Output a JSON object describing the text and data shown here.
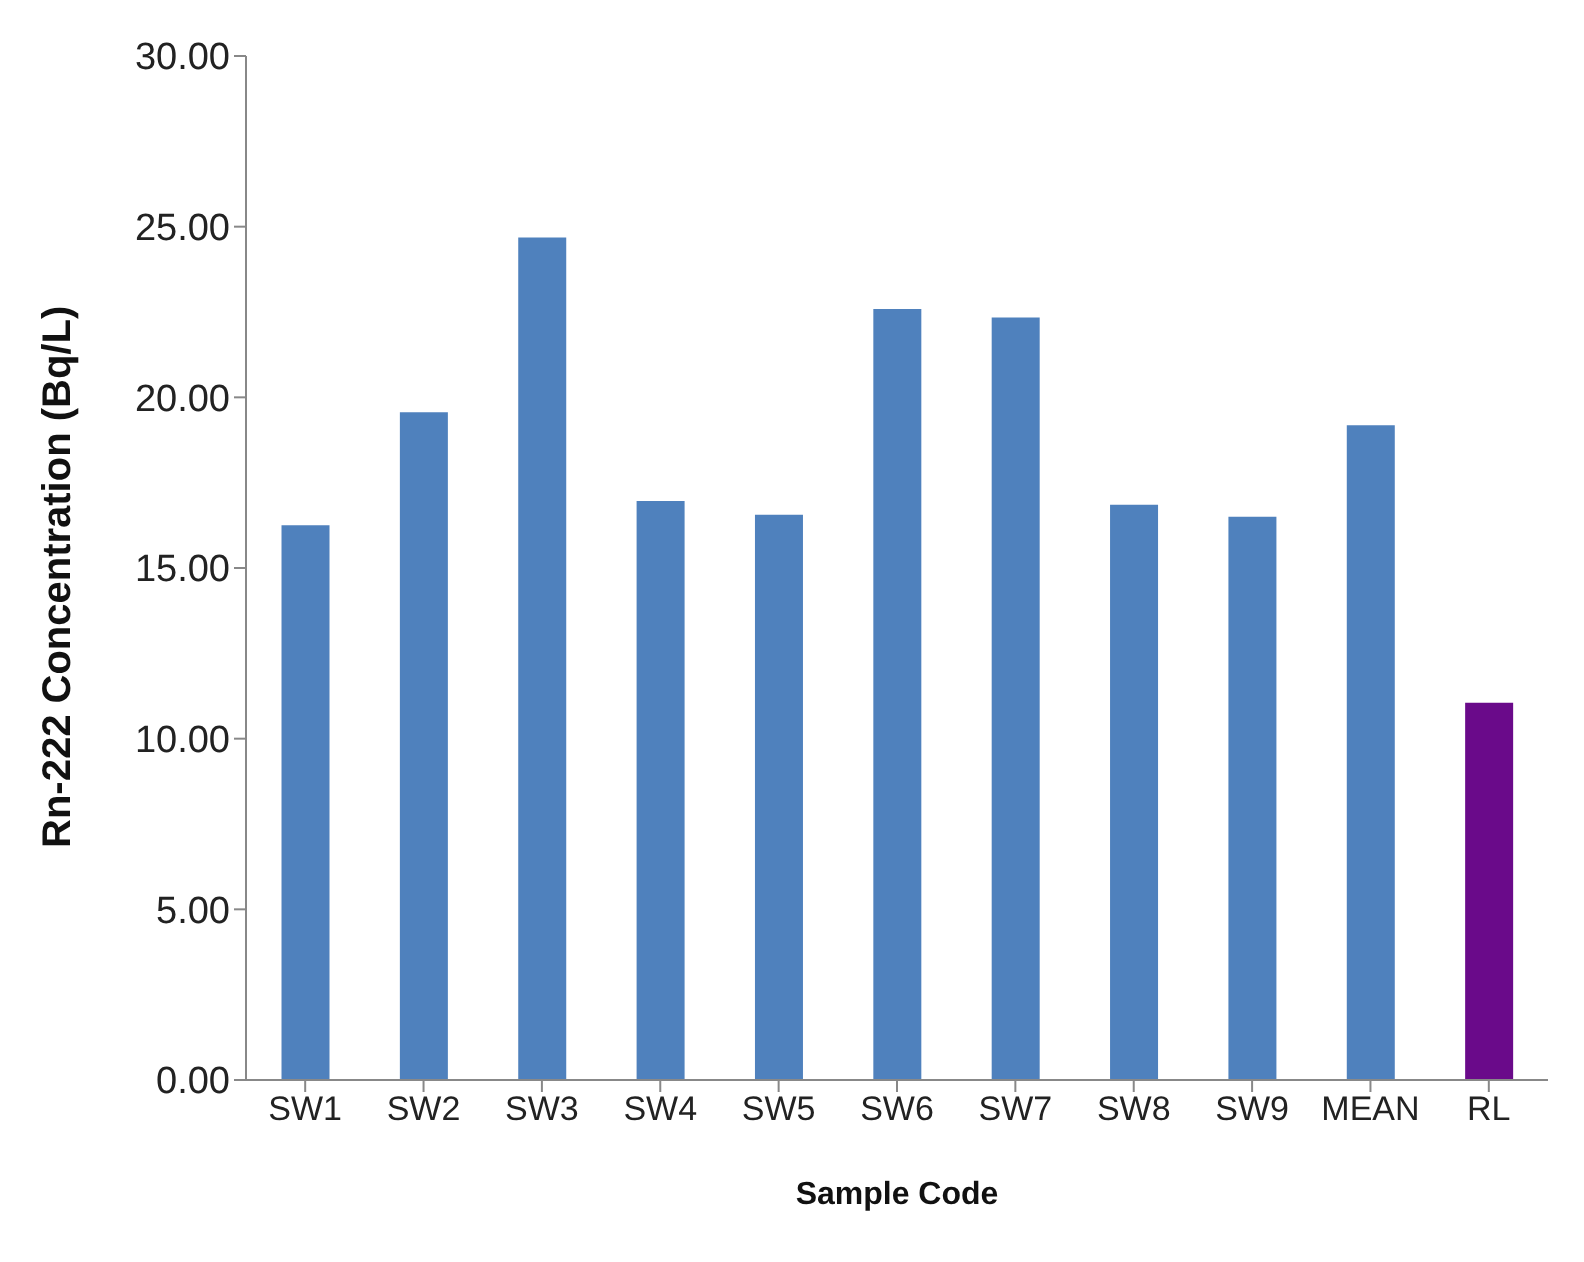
{
  "chart_data": {
    "type": "bar",
    "xlabel": "Sample Code",
    "ylabel": "Rn-222 Concentration (Bq/L)",
    "categories": [
      "SW1",
      "SW2",
      "SW3",
      "SW4",
      "SW5",
      "SW6",
      "SW7",
      "SW8",
      "SW9",
      "MEAN",
      "RL"
    ],
    "values": [
      16.25,
      19.56,
      24.68,
      16.96,
      16.56,
      22.59,
      22.34,
      16.85,
      16.5,
      19.18,
      11.05
    ],
    "colors": [
      "#4f81bd",
      "#4f81bd",
      "#4f81bd",
      "#4f81bd",
      "#4f81bd",
      "#4f81bd",
      "#4f81bd",
      "#4f81bd",
      "#4f81bd",
      "#4f81bd",
      "#6a0a8a"
    ],
    "ylim": [
      0,
      30
    ],
    "yticks": [
      {
        "value": 0,
        "label": "0.00"
      },
      {
        "value": 5,
        "label": "5.00"
      },
      {
        "value": 10,
        "label": "10.00"
      },
      {
        "value": 15,
        "label": "15.00"
      },
      {
        "value": 20,
        "label": "20.00"
      },
      {
        "value": 25,
        "label": "25.00"
      },
      {
        "value": 30,
        "label": "30.00"
      }
    ],
    "grid": false,
    "legend": false
  }
}
